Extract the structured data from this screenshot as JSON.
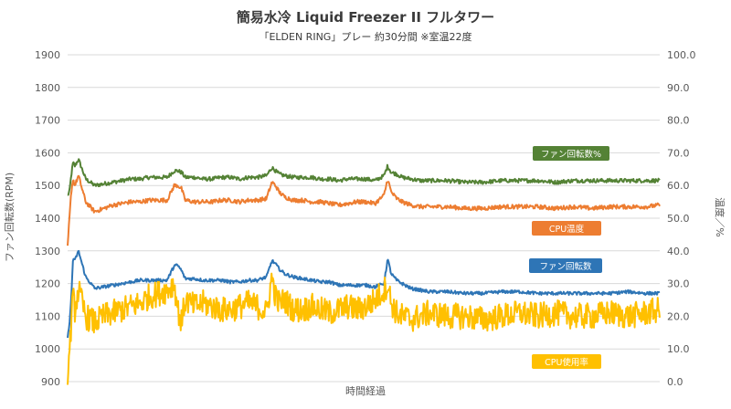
{
  "chart_data": {
    "type": "line",
    "title": "簡易水冷 Liquid Freezer II フルタワー",
    "subtitle": "「ELDEN RING」プレー 約30分間 ※室温22度",
    "xlabel": "時間経過",
    "ylabel_left": "ファン回転数(RPM)",
    "ylabel_right": "温度／%",
    "ylim_left": [
      900,
      1900
    ],
    "ylim_right": [
      0,
      100
    ],
    "yticks_left": [
      "1900",
      "1800",
      "1700",
      "1600",
      "1500",
      "1400",
      "1300",
      "1200",
      "1100",
      "1000",
      "900"
    ],
    "yticks_right": [
      "100.0",
      "90.0",
      "80.0",
      "70.0",
      "60.0",
      "50.0",
      "40.0",
      "30.0",
      "20.0",
      "10.0",
      "0.0"
    ],
    "grid": true,
    "x": [
      0,
      2,
      4,
      6,
      8,
      12,
      20,
      30,
      40,
      50,
      60,
      70,
      80,
      90,
      100,
      110,
      118,
      122,
      126,
      130,
      140,
      150,
      160,
      170,
      180,
      190,
      200,
      210,
      220,
      226,
      230,
      234,
      240,
      250,
      260,
      270,
      280,
      290,
      300,
      310,
      320,
      330,
      340,
      350,
      354,
      358,
      364,
      370,
      380,
      390,
      400,
      420,
      440,
      460,
      480,
      500,
      520,
      540,
      560,
      580,
      600,
      620,
      640,
      655
    ],
    "series": [
      {
        "name": "ファン回転数%",
        "axis": "right",
        "color": "#548235",
        "values": [
          57,
          58,
          63,
          67,
          66,
          68,
          62,
          60,
          60.5,
          61,
          61.5,
          62,
          62,
          62.5,
          62.5,
          62.5,
          64.5,
          64.5,
          64,
          62.5,
          62.5,
          62,
          62,
          62.5,
          62.5,
          62,
          62.5,
          62.5,
          63,
          65.5,
          64.5,
          63.5,
          63,
          62.5,
          62.5,
          62.5,
          62,
          62,
          61.5,
          62,
          62,
          62,
          61.5,
          63,
          66,
          64,
          63.5,
          62.5,
          62,
          61.5,
          61.5,
          61.5,
          61,
          61,
          61.5,
          61.5,
          61.5,
          61,
          61.5,
          61.5,
          61.5,
          61.5,
          61.5,
          61.5
        ]
      },
      {
        "name": "CPU温度",
        "axis": "right",
        "color": "#ed7d31",
        "values": [
          41,
          50,
          58,
          62,
          60,
          63,
          55,
          52,
          53,
          54,
          54.5,
          55,
          55,
          55.5,
          55.5,
          55.5,
          60,
          60,
          59,
          55.5,
          55,
          55,
          55,
          55.5,
          55.5,
          55,
          55.5,
          55.5,
          56,
          61,
          60,
          58,
          56.5,
          55.5,
          55.5,
          55,
          55,
          54.5,
          54,
          54.5,
          55,
          55,
          54.5,
          57,
          62,
          58,
          56,
          55,
          54,
          53.5,
          53.5,
          53.5,
          53,
          53,
          53.5,
          53.5,
          53.5,
          53,
          53.5,
          53,
          53.5,
          53.5,
          53.5,
          54
        ]
      },
      {
        "name": "ファン回転数",
        "axis": "left",
        "color": "#2e75b6",
        "values": [
          1030,
          1080,
          1150,
          1280,
          1270,
          1300,
          1220,
          1185,
          1190,
          1195,
          1200,
          1205,
          1210,
          1210,
          1210,
          1210,
          1255,
          1255,
          1240,
          1215,
          1215,
          1210,
          1210,
          1210,
          1205,
          1205,
          1210,
          1210,
          1220,
          1270,
          1260,
          1245,
          1230,
          1220,
          1215,
          1210,
          1205,
          1205,
          1195,
          1195,
          1195,
          1195,
          1190,
          1200,
          1275,
          1230,
          1210,
          1200,
          1185,
          1180,
          1175,
          1175,
          1170,
          1170,
          1175,
          1175,
          1170,
          1170,
          1170,
          1170,
          1170,
          1175,
          1170,
          1170
        ]
      },
      {
        "name": "CPU使用率",
        "axis": "right",
        "color": "#ffc000",
        "values": [
          3,
          8,
          18,
          26,
          22,
          28,
          20,
          18,
          20,
          21,
          22,
          23,
          24,
          26,
          27,
          28,
          30,
          22,
          18,
          25,
          23,
          24,
          23,
          22,
          22,
          23,
          24,
          23,
          21,
          32,
          26,
          24,
          25,
          22,
          22,
          23,
          22,
          21,
          22,
          23,
          22,
          23,
          25,
          28,
          30,
          24,
          21,
          20,
          19,
          20,
          21,
          20,
          20,
          19,
          20,
          21,
          20,
          21,
          20,
          20,
          21,
          20,
          21,
          22
        ]
      }
    ],
    "legend": [
      {
        "label": "ファン回転数%",
        "color": "#548235",
        "placement": "above-series"
      },
      {
        "label": "CPU温度",
        "color": "#ed7d31",
        "placement": "below-series"
      },
      {
        "label": "ファン回転数",
        "color": "#2e75b6",
        "placement": "above-series"
      },
      {
        "label": "CPU使用率",
        "color": "#ffc000",
        "placement": "below-series"
      }
    ]
  }
}
